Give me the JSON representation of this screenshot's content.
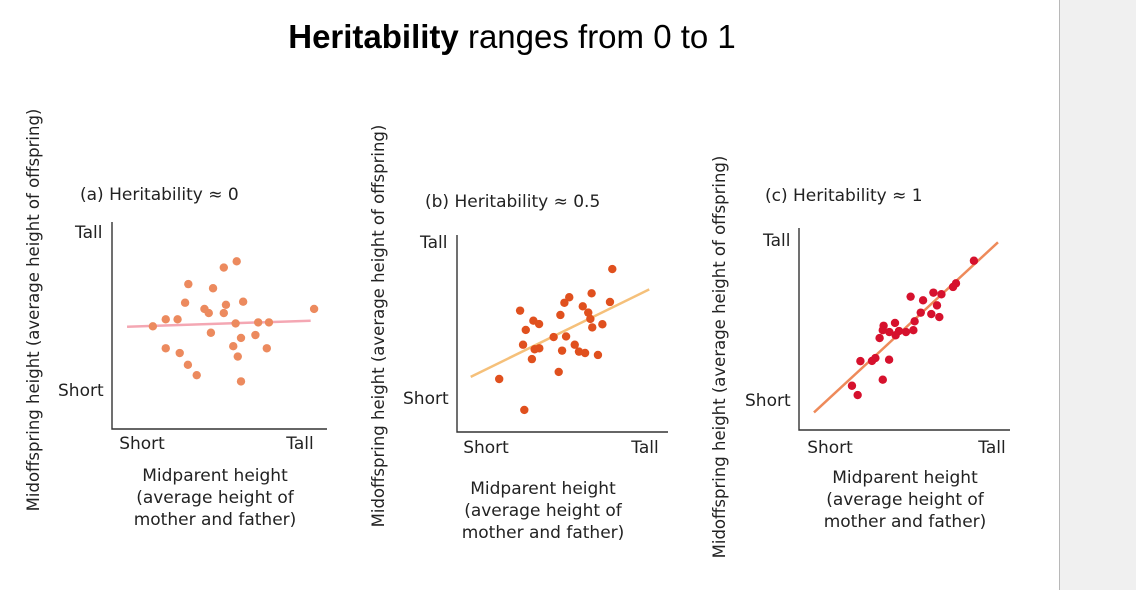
{
  "title": {
    "bold": "Heritability",
    "rest": " ranges from 0 to 1"
  },
  "chart_data": [
    {
      "type": "scatter",
      "title": "(a)  Heritability ≈ 0",
      "xlabel": [
        "Midparent height",
        "(average height of",
        "mother and father)"
      ],
      "ylabel": "Midoffspring height (average height of offspring)",
      "xticks": [
        "Short",
        "Tall"
      ],
      "yticks": [
        "Short",
        "Tall"
      ],
      "xlim": [
        0,
        100
      ],
      "ylim": [
        0,
        100
      ],
      "point_color": "#ec8a5e",
      "line_color": "#f4a7b3",
      "points": [
        [
          58,
          81
        ],
        [
          52,
          78
        ],
        [
          35.5,
          70
        ],
        [
          47,
          68
        ],
        [
          34,
          61
        ],
        [
          53,
          60
        ],
        [
          61,
          61.5
        ],
        [
          43,
          58
        ],
        [
          45,
          56
        ],
        [
          52,
          56
        ],
        [
          94,
          58
        ],
        [
          25,
          53
        ],
        [
          30.5,
          53
        ],
        [
          19,
          49.6
        ],
        [
          57.5,
          51
        ],
        [
          68,
          51.5
        ],
        [
          73,
          51.5
        ],
        [
          46,
          46.5
        ],
        [
          66.7,
          45.4
        ],
        [
          60,
          44
        ],
        [
          25,
          39
        ],
        [
          31.5,
          36.7
        ],
        [
          56.4,
          40
        ],
        [
          72,
          39
        ],
        [
          58.5,
          35
        ],
        [
          35.3,
          31
        ],
        [
          39.4,
          26
        ],
        [
          60,
          23
        ]
      ],
      "trend_line": [
        [
          7,
          49.4
        ],
        [
          92.4,
          52.3
        ]
      ]
    },
    {
      "type": "scatter",
      "title": "(b)  Heritability ≈ 0.5",
      "xlabel": [
        "Midparent height",
        "(average height of",
        "mother and father)"
      ],
      "ylabel": "Midoffspring height (average height of offspring)",
      "xticks": [
        "Short",
        "Tall"
      ],
      "yticks": [
        "Short",
        "Tall"
      ],
      "xlim": [
        0,
        100
      ],
      "ylim": [
        0,
        100
      ],
      "point_color": "#e0501e",
      "line_color": "#f5c07a",
      "points": [
        [
          73.6,
          82.7
        ],
        [
          63.8,
          70.4
        ],
        [
          53.2,
          68.4
        ],
        [
          50.9,
          65.6
        ],
        [
          72.5,
          66
        ],
        [
          59.6,
          63.8
        ],
        [
          29.9,
          61.6
        ],
        [
          62.2,
          60.6
        ],
        [
          49,
          59.4
        ],
        [
          63.2,
          57.4
        ],
        [
          36.2,
          56.5
        ],
        [
          38.9,
          54.8
        ],
        [
          68.9,
          54.7
        ],
        [
          64.1,
          53.1
        ],
        [
          32.6,
          51.8
        ],
        [
          45.8,
          48.2
        ],
        [
          51.7,
          48.5
        ],
        [
          31.3,
          44.3
        ],
        [
          55.8,
          44.3
        ],
        [
          36.8,
          42
        ],
        [
          39,
          42.5
        ],
        [
          49.8,
          41.3
        ],
        [
          57.8,
          40.8
        ],
        [
          60.7,
          40.1
        ],
        [
          66.8,
          39.1
        ],
        [
          35.5,
          37
        ],
        [
          48.2,
          30.5
        ],
        [
          20,
          26.9
        ],
        [
          31.9,
          11.2
        ]
      ],
      "trend_line": [
        [
          6.5,
          28
        ],
        [
          91.1,
          72.4
        ]
      ]
    },
    {
      "type": "scatter",
      "title": "(c)  Heritability ≈ 1",
      "xlabel": [
        "Midparent height",
        "(average height of",
        "mother and father)"
      ],
      "ylabel": "Midoffspring height (average height of offspring)",
      "xticks": [
        "Short",
        "Tall"
      ],
      "yticks": [
        "Short",
        "Tall"
      ],
      "xlim": [
        0,
        100
      ],
      "ylim": [
        0,
        100
      ],
      "point_color": "#d6112d",
      "line_color": "#ee8a5a",
      "points": [
        [
          82.9,
          83.8
        ],
        [
          74.4,
          72.6
        ],
        [
          73,
          70.8
        ],
        [
          63.7,
          68
        ],
        [
          67.5,
          67.2
        ],
        [
          52.9,
          66
        ],
        [
          58.8,
          64.2
        ],
        [
          65.4,
          61.7
        ],
        [
          57.7,
          58.1
        ],
        [
          62.7,
          57.4
        ],
        [
          66.5,
          55.9
        ],
        [
          54.8,
          53.8
        ],
        [
          45.5,
          53
        ],
        [
          40.1,
          51.6
        ],
        [
          39.7,
          49.4
        ],
        [
          42.8,
          48.5
        ],
        [
          47.4,
          49
        ],
        [
          50.7,
          48.5
        ],
        [
          54.2,
          49.4
        ],
        [
          45.8,
          46.9
        ],
        [
          38.2,
          45.5
        ],
        [
          36.2,
          35.6
        ],
        [
          34.6,
          34.2
        ],
        [
          29.1,
          34.1
        ],
        [
          42.7,
          34.8
        ],
        [
          39.7,
          24.9
        ],
        [
          25.1,
          21.9
        ],
        [
          27.8,
          17.3
        ]
      ],
      "trend_line": [
        [
          7.1,
          8.7
        ],
        [
          94.3,
          92.9
        ]
      ]
    }
  ]
}
